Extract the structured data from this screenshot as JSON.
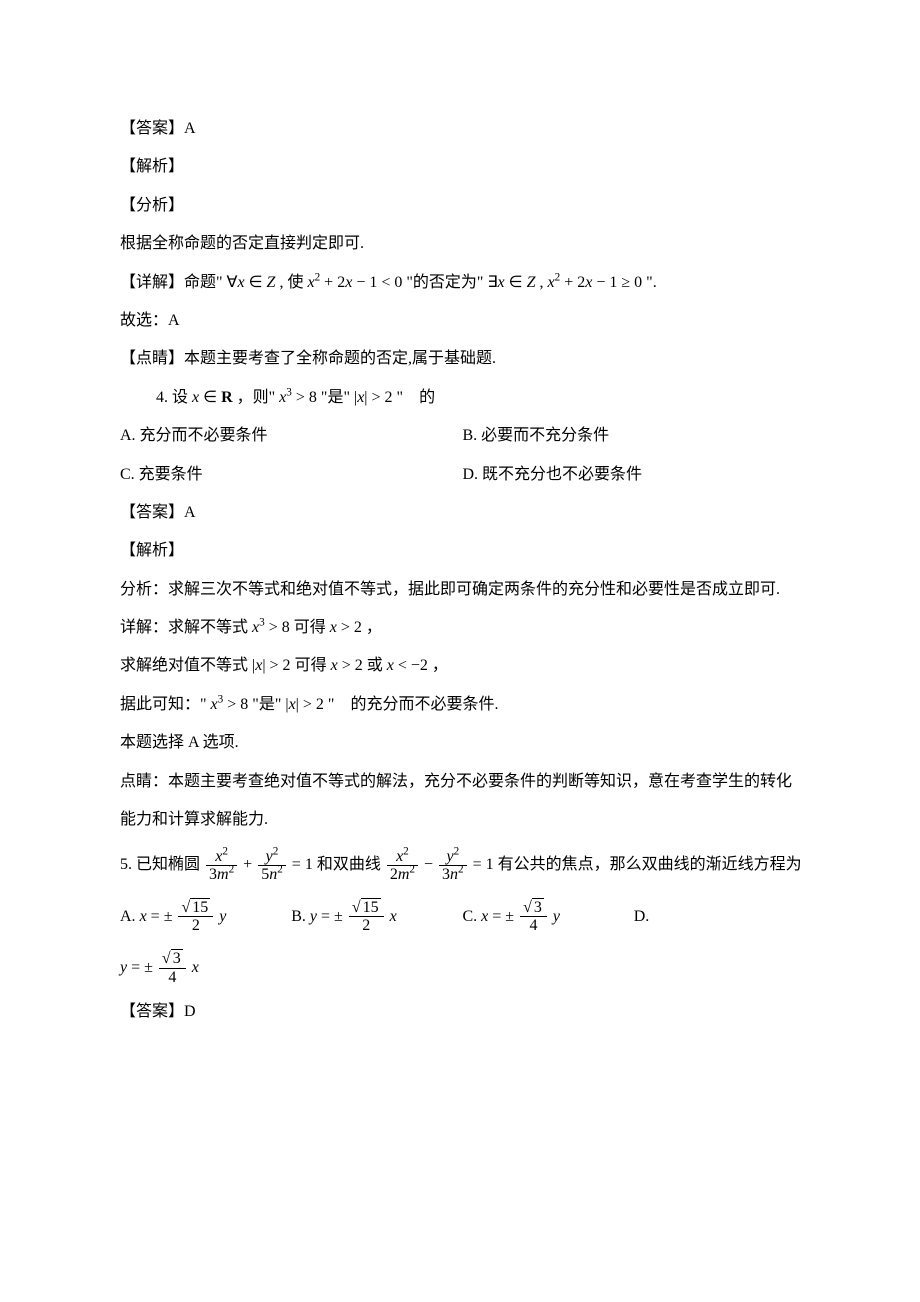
{
  "p1": "【答案】A",
  "p2": "【解析】",
  "p3": "【分析】",
  "p4": "根据全称命题的否定直接判定即可.",
  "p5_a": "【详解】命题\" ",
  "p5_b": " \"的否定为\" ",
  "p5_c": " \".",
  "p6": "故选：A",
  "p7": "【点睛】本题主要考查了全称命题的否定,属于基础题.",
  "q4_stem_a": "4. 设 ",
  "q4_stem_b": " ，则\" ",
  "q4_stem_c": " \"是\" ",
  "q4_stem_d": " \"　的",
  "q4_A": "A.  充分而不必要条件",
  "q4_B": "B.  必要而不充分条件",
  "q4_C": "C.  充要条件",
  "q4_D": "D.  既不充分也不必要条件",
  "p8": "【答案】A",
  "p9": "【解析】",
  "p10": "分析：求解三次不等式和绝对值不等式，据此即可确定两条件的充分性和必要性是否成立即可.",
  "p11_a": "详解：求解不等式 ",
  "p11_b": " 可得 ",
  "p11_c": " ，",
  "p12_a": "求解绝对值不等式 ",
  "p12_b": " 可得 ",
  "p12_c": " 或 ",
  "p12_d": " ，",
  "p13_a": "据此可知：\" ",
  "p13_b": " \"是\" ",
  "p13_c": " \"　的充分而不必要条件.",
  "p14": "本题选择 A 选项.",
  "p15": "点睛：本题主要考查绝对值不等式的解法，充分不必要条件的判断等知识，意在考查学生的转化能力和计算求解能力.",
  "q5_a": "5. 已知椭圆 ",
  "q5_b": " 和双曲线 ",
  "q5_c": " 有公共的焦点，那么双曲线的渐近线方程为",
  "q5_A": "A.  ",
  "q5_B": "B.  ",
  "q5_C": "C.  ",
  "q5_D": "D.",
  "p16": "【答案】D"
}
